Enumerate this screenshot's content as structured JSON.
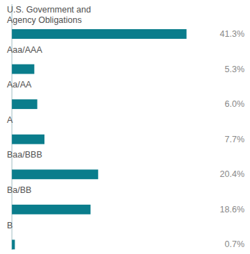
{
  "chart_data": {
    "type": "bar",
    "orientation": "horizontal",
    "categories": [
      "U.S. Government and\nAgency Obligations",
      "Aaa/AAA",
      "Aa/AA",
      "A",
      "Baa/BBB",
      "Ba/BB",
      "B"
    ],
    "values": [
      41.3,
      5.3,
      6.0,
      7.7,
      20.4,
      18.6,
      0.7
    ],
    "value_labels": [
      "41.3%",
      "5.3%",
      "6.0%",
      "7.7%",
      "20.4%",
      "18.6%",
      "0.7%"
    ],
    "color": "#0a7d8c",
    "xlim": [
      -1.5,
      55
    ],
    "data_labels": true,
    "tick_labels": false,
    "grid": false
  }
}
